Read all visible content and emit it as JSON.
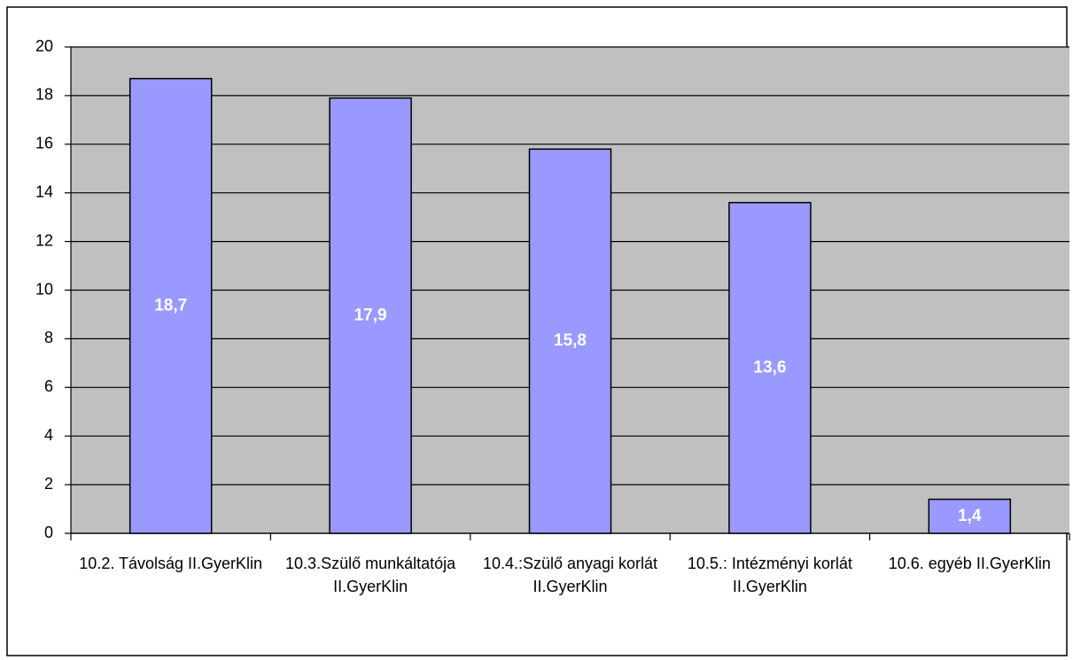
{
  "chart_data": {
    "type": "bar",
    "categories": [
      "10.2. Távolság II.GyerKlin",
      "10.3.Szülő munkáltatója II.GyerKlin",
      "10.4.:Szülő anyagi korlát II.GyerKlin",
      "10.5.: Intézményi korlát II.GyerKlin",
      "10.6. egyéb II.GyerKlin"
    ],
    "values": [
      18.7,
      17.9,
      15.8,
      13.6,
      1.4
    ],
    "value_labels": [
      "18,7",
      "17,9",
      "15,8",
      "13,6",
      "1,4"
    ],
    "color": "#9999ff",
    "ylim": [
      0,
      20
    ],
    "yticks": [
      0,
      2,
      4,
      6,
      8,
      10,
      12,
      14,
      16,
      18,
      20
    ],
    "grid": true
  }
}
